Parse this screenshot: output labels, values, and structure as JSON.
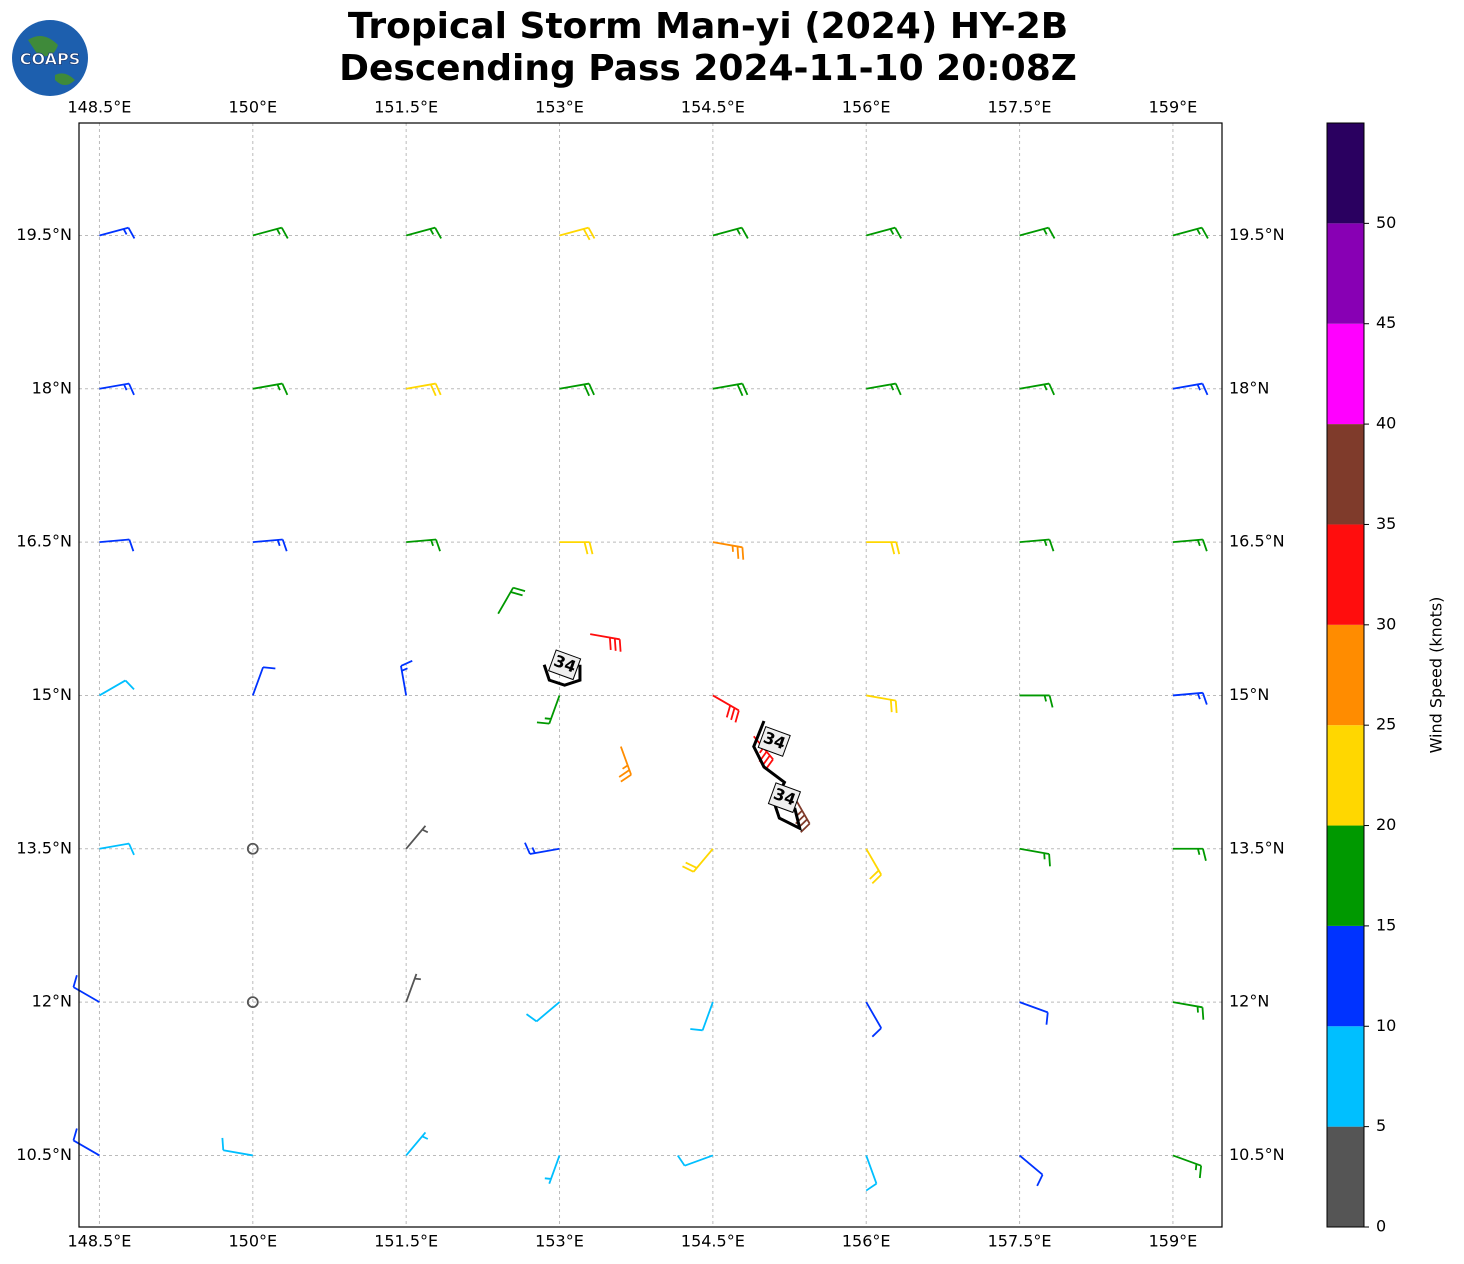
{
  "header": {
    "title_line1": "Tropical Storm Man-yi (2024) HY-2B",
    "title_line2": "Descending Pass 2024-11-10 20:08Z",
    "logo": "COAPS"
  },
  "map": {
    "xlim": [
      148.3,
      159.48
    ],
    "ylim": [
      9.8,
      20.6
    ],
    "grid": true,
    "xticks": [
      {
        "value": 148.5,
        "label": "148.5°E"
      },
      {
        "value": 150,
        "label": "150°E"
      },
      {
        "value": 151.5,
        "label": "151.5°E"
      },
      {
        "value": 153,
        "label": "153°E"
      },
      {
        "value": 154.5,
        "label": "154.5°E"
      },
      {
        "value": 156,
        "label": "156°E"
      },
      {
        "value": 157.5,
        "label": "157.5°E"
      },
      {
        "value": 159,
        "label": "159°E"
      }
    ],
    "yticks": [
      {
        "value": 10.5,
        "label": "10.5°N"
      },
      {
        "value": 12,
        "label": "12°N"
      },
      {
        "value": 13.5,
        "label": "13.5°N"
      },
      {
        "value": 15,
        "label": "15°N"
      },
      {
        "value": 16.5,
        "label": "16.5°N"
      },
      {
        "value": 18,
        "label": "18°N"
      },
      {
        "value": 19.5,
        "label": "19.5°N"
      }
    ],
    "barbs": {
      "lon": [
        148.5,
        150,
        151.5,
        153,
        154.5,
        156,
        157.5,
        159,
        148.5,
        150,
        151.5,
        153,
        154.5,
        156,
        157.5,
        159,
        148.5,
        150,
        151.5,
        153,
        154.5,
        156,
        157.5,
        159,
        148.5,
        150,
        151.5,
        153,
        154.5,
        156,
        157.5,
        159,
        148.5,
        150,
        151.5,
        153,
        154.5,
        156,
        157.5,
        159,
        148.5,
        150,
        151.5,
        153,
        154.5,
        156,
        157.5,
        159,
        148.5,
        150,
        151.5,
        153,
        154.5,
        156,
        157.5,
        159,
        153.3,
        154.9,
        155.3,
        152.4,
        153.6
      ],
      "lat": [
        19.5,
        19.5,
        19.5,
        19.5,
        19.5,
        19.5,
        19.5,
        19.5,
        18,
        18,
        18,
        18,
        18,
        18,
        18,
        18,
        16.5,
        16.5,
        16.5,
        16.5,
        16.5,
        16.5,
        16.5,
        16.5,
        15,
        15,
        15,
        15,
        15,
        15,
        15,
        15,
        13.5,
        13.5,
        13.5,
        13.5,
        13.5,
        13.5,
        13.5,
        13.5,
        12,
        12,
        12,
        12,
        12,
        12,
        12,
        12,
        10.5,
        10.5,
        10.5,
        10.5,
        10.5,
        10.5,
        10.5,
        10.5,
        15.6,
        14.6,
        14.0,
        15.8,
        14.5
      ],
      "speed": [
        13,
        15,
        17,
        20,
        17,
        15,
        17,
        16,
        13,
        17,
        20,
        18,
        18,
        17,
        17,
        13,
        12,
        13,
        17,
        22,
        25,
        20,
        17,
        15,
        8,
        10,
        13,
        15,
        30,
        20,
        15,
        13,
        8,
        2,
        3,
        13,
        22,
        22,
        15,
        15,
        10,
        2,
        4,
        9,
        9,
        10,
        12,
        15,
        12,
        9,
        5,
        7,
        8,
        9,
        12,
        17,
        32,
        33,
        37,
        18,
        27
      ],
      "direction": [
        75,
        75,
        75,
        75,
        75,
        75,
        75,
        75,
        80,
        80,
        80,
        80,
        80,
        80,
        80,
        80,
        85,
        85,
        85,
        90,
        100,
        90,
        85,
        85,
        60,
        20,
        350,
        200,
        120,
        100,
        90,
        85,
        80,
        0,
        40,
        260,
        220,
        150,
        100,
        90,
        300,
        0,
        20,
        230,
        200,
        150,
        110,
        100,
        300,
        280,
        40,
        200,
        250,
        160,
        130,
        110,
        100,
        140,
        150,
        30,
        160
      ]
    },
    "contours": [
      {
        "label": "34",
        "lon": [
          152.85,
          152.9,
          153.05,
          153.2,
          153.2
        ],
        "lat": [
          15.3,
          15.15,
          15.1,
          15.15,
          15.3
        ],
        "label_lon": 153.05,
        "label_lat": 15.3
      },
      {
        "label": "34",
        "lon": [
          155.0,
          154.9,
          155.0,
          155.2,
          155.1,
          155.15,
          155.35,
          155.3
        ],
        "lat": [
          14.75,
          14.5,
          14.3,
          14.15,
          13.95,
          13.8,
          13.7,
          13.9
        ],
        "label_lon": 155.1,
        "label_lat": 14.55
      },
      {
        "label": "34",
        "lon": [],
        "lat": [],
        "label_lon": 155.2,
        "label_lat": 14.0
      }
    ]
  },
  "colorbar": {
    "label": "Wind Speed (knots)",
    "bounds": [
      0,
      5,
      10,
      15,
      20,
      25,
      30,
      35,
      40,
      45,
      50,
      55
    ],
    "colors": [
      "#555555",
      "#00bfff",
      "#0033ff",
      "#009900",
      "#ffd700",
      "#ff8c00",
      "#ff0d0d",
      "#7f3b2b",
      "#ff00ff",
      "#8800b4",
      "#2a0060"
    ],
    "ticks": [
      0,
      5,
      10,
      15,
      20,
      25,
      30,
      35,
      40,
      45,
      50
    ]
  }
}
